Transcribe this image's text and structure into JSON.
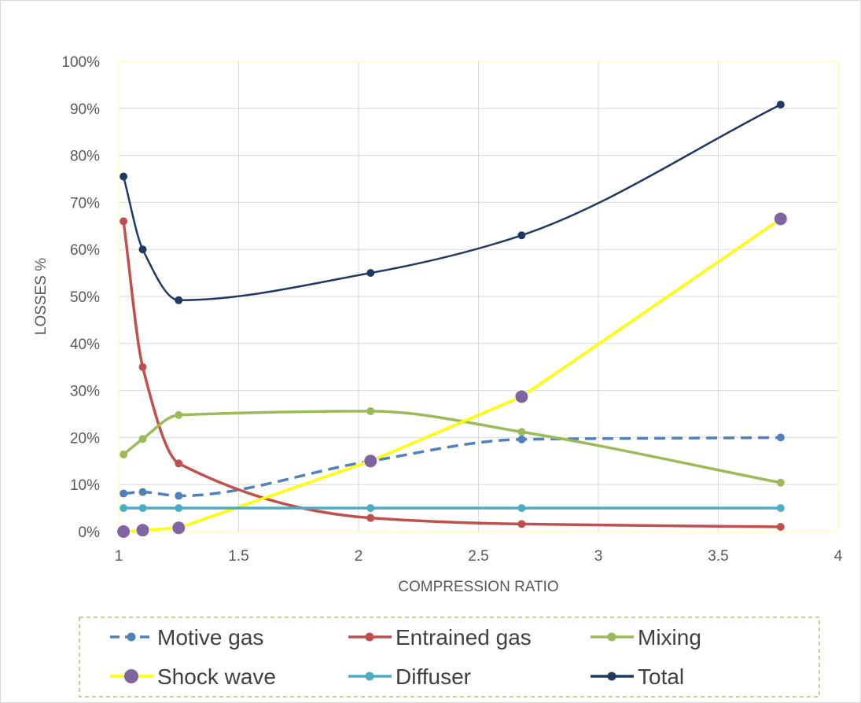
{
  "chart_data": {
    "type": "line",
    "title": "",
    "xlabel": "COMPRESSION RATIO",
    "ylabel": "LOSSES %",
    "xlim": [
      1,
      4
    ],
    "ylim": [
      0,
      100
    ],
    "x_ticks": [
      1,
      1.5,
      2,
      2.5,
      3,
      3.5,
      4
    ],
    "x_tick_labels": [
      "1",
      "1.5",
      "2",
      "2.5",
      "3",
      "3.5",
      "4"
    ],
    "y_ticks": [
      0,
      10,
      20,
      30,
      40,
      50,
      60,
      70,
      80,
      90,
      100
    ],
    "y_tick_labels": [
      "0%",
      "10%",
      "20%",
      "30%",
      "40%",
      "50%",
      "60%",
      "70%",
      "80%",
      "90%",
      "100%"
    ],
    "grid": true,
    "legend_position": "bottom",
    "plot_border_color": "#ffff99",
    "series": [
      {
        "name": "Motive gas",
        "color": "#4f81bd",
        "dash": true,
        "marker": "small",
        "x": [
          1.02,
          1.1,
          1.25,
          2.05,
          2.68,
          3.76
        ],
        "y": [
          8.1,
          8.4,
          7.6,
          15,
          19.6,
          20
        ]
      },
      {
        "name": "Entrained gas",
        "color": "#c0504d",
        "dash": false,
        "marker": "small",
        "x": [
          1.02,
          1.1,
          1.25,
          2.05,
          2.68,
          3.76
        ],
        "y": [
          66,
          35,
          14.5,
          2.9,
          1.6,
          1
        ]
      },
      {
        "name": "Mixing",
        "color": "#9bbb59",
        "dash": false,
        "marker": "small",
        "x": [
          1.02,
          1.1,
          1.25,
          2.05,
          2.68,
          3.76
        ],
        "y": [
          16.4,
          19.7,
          24.8,
          25.6,
          21.2,
          10.4
        ]
      },
      {
        "name": "Shock wave",
        "color": "#ffff00",
        "marker_color": "#8064a2",
        "dash": false,
        "marker": "large",
        "straight": true,
        "x": [
          1.02,
          1.1,
          1.25,
          2.05,
          2.68,
          3.76
        ],
        "y": [
          0,
          0.3,
          0.8,
          15,
          28.7,
          66.5
        ]
      },
      {
        "name": "Diffuser",
        "color": "#4bacc6",
        "dash": false,
        "marker": "small",
        "x": [
          1.02,
          1.1,
          1.25,
          2.05,
          2.68,
          3.76
        ],
        "y": [
          5,
          5,
          5,
          5,
          5,
          5
        ]
      },
      {
        "name": "Total",
        "color": "#1f3864",
        "dash": false,
        "marker": "small",
        "x": [
          1.02,
          1.1,
          1.25,
          2.05,
          2.68,
          3.76
        ],
        "y": [
          75.5,
          60,
          49.2,
          55,
          63,
          90.8
        ]
      }
    ]
  }
}
